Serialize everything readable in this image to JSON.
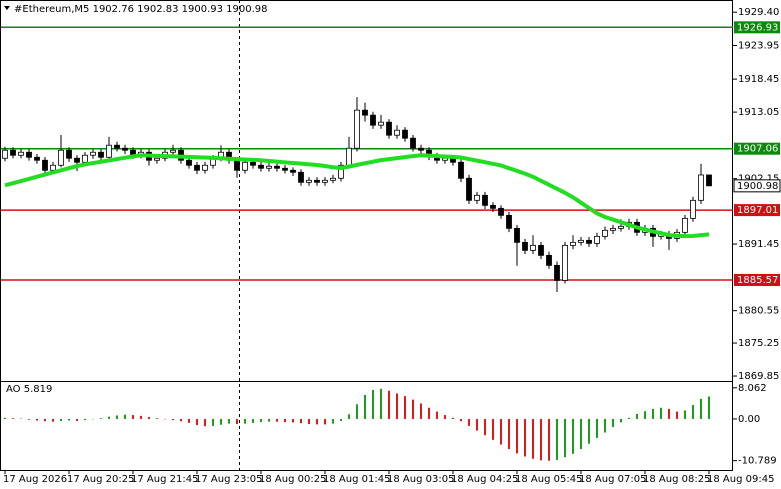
{
  "chart_data": [
    {
      "type": "candlestick",
      "title": "#Ethereum,M5  1902.76 1902.83 1900.93 1900.98",
      "categories": [
        "17 Aug 2026",
        null,
        null,
        null,
        null,
        null,
        null,
        null,
        "17 Aug 20:25",
        null,
        null,
        null,
        null,
        null,
        null,
        null,
        "17 Aug 21:45",
        null,
        null,
        null,
        null,
        null,
        null,
        null,
        "17 Aug 23:05",
        null,
        null,
        null,
        null,
        null,
        null,
        null,
        "18 Aug 00:25",
        null,
        null,
        null,
        null,
        null,
        null,
        null,
        "18 Aug 01:45",
        null,
        null,
        null,
        null,
        null,
        null,
        null,
        "18 Aug 03:05",
        null,
        null,
        null,
        null,
        null,
        null,
        null,
        "18 Aug 04:25",
        null,
        null,
        null,
        null,
        null,
        null,
        null,
        "18 Aug 05:45",
        null,
        null,
        null,
        null,
        null,
        null,
        null,
        "18 Aug 07:05",
        null,
        null,
        null,
        null,
        null,
        null,
        null,
        "18 Aug 08:25",
        null,
        null,
        null,
        null,
        null,
        null,
        null,
        "18 Aug 09:45"
      ],
      "open": [
        1905.5,
        1906.81,
        1905.99,
        1906.48,
        1905.66,
        1905.17,
        1903.53,
        1904.35,
        1906.81,
        1905.5,
        1904.84,
        1905.99,
        1906.48,
        1905.66,
        1907.63,
        1907.14,
        1906.81,
        1905.99,
        1906.48,
        1905.17,
        1905.5,
        1906.48,
        1906.81,
        1905.17,
        1904.35,
        1903.53,
        1904.35,
        1905.5,
        1906.48,
        1905.17,
        1903.53,
        1904.84,
        1904.35,
        1903.86,
        1904.19,
        1903.86,
        1903.53,
        1903.2,
        1901.56,
        1901.89,
        1901.56,
        1901.89,
        1902.22,
        1904.35,
        1907.14,
        1913.37,
        1912.55,
        1910.91,
        1911.4,
        1909.27,
        1910.09,
        1908.78,
        1907.14,
        1906.81,
        1905.83,
        1905.17,
        1905.5,
        1904.84,
        1902.22,
        1898.61,
        1899.43,
        1897.79,
        1897.3,
        1896.15,
        1894.02,
        1891.73,
        1890.42,
        1891.24,
        1889.6,
        1887.96,
        1885.5,
        1891.24,
        1891.73,
        1892.06,
        1891.56,
        1892.71,
        1893.7,
        1894.02,
        1894.35,
        1895.01,
        1893.37,
        1894.02,
        1892.71,
        1893.04,
        1892.38,
        1893.37,
        1895.66,
        1898.61,
        1902.76
      ],
      "high": [
        1907.4,
        1907.3,
        1907,
        1907,
        1906.2,
        1905.7,
        1904.9,
        1909.3,
        1907.3,
        1906,
        1906.5,
        1907,
        1907,
        1909,
        1908.2,
        1907.7,
        1907.3,
        1907,
        1907,
        1906,
        1907,
        1907.7,
        1907.3,
        1905.7,
        1904.9,
        1904.9,
        1906,
        1907.6,
        1907,
        1905.7,
        1905.4,
        1905.4,
        1904.9,
        1904.7,
        1904.7,
        1904.4,
        1904,
        1903.7,
        1902.4,
        1902.4,
        1902.4,
        1902.8,
        1904.9,
        1909,
        1915.5,
        1914.6,
        1913.1,
        1912.6,
        1911.9,
        1910.9,
        1910.6,
        1909.3,
        1907.7,
        1907.3,
        1906.4,
        1906,
        1906,
        1905.4,
        1902.8,
        1900,
        1900,
        1898.3,
        1897.8,
        1896.7,
        1894.6,
        1892.3,
        1892.9,
        1891.8,
        1890.2,
        1888.6,
        1891.8,
        1892.9,
        1892.6,
        1892.6,
        1893.3,
        1894.3,
        1894.6,
        1895.5,
        1895.6,
        1895.6,
        1894.6,
        1894.6,
        1893.6,
        1893.6,
        1893.9,
        1896.2,
        1899.2,
        1904.6,
        1902.83
      ],
      "low": [
        1905,
        1905.5,
        1905.5,
        1905.1,
        1904.6,
        1902.9,
        1903,
        1904,
        1904.9,
        1903.4,
        1904.3,
        1905.4,
        1905.1,
        1905.2,
        1906.6,
        1906.2,
        1905.4,
        1905.5,
        1904.3,
        1904.6,
        1905,
        1906,
        1904.6,
        1903.8,
        1902.9,
        1903,
        1903.8,
        1905,
        1904.6,
        1902.3,
        1903,
        1903.8,
        1903.3,
        1903.3,
        1903.3,
        1903,
        1902.6,
        1901,
        1901,
        1901,
        1901,
        1901.4,
        1901.7,
        1903.8,
        1906.6,
        1911.5,
        1910.3,
        1910.3,
        1908.7,
        1908.7,
        1908.2,
        1906.6,
        1906.2,
        1905.2,
        1904.6,
        1904.6,
        1904.3,
        1901.6,
        1898,
        1898,
        1897.2,
        1896.7,
        1895.6,
        1893.4,
        1887.9,
        1889.8,
        1889.8,
        1889,
        1887.4,
        1883.6,
        1885,
        1890.6,
        1891.2,
        1891,
        1891,
        1892.2,
        1893.1,
        1893.5,
        1893.8,
        1892.8,
        1892.8,
        1891,
        1892.2,
        1890.5,
        1891.8,
        1892.8,
        1895.1,
        1898,
        1900.93
      ],
      "close": [
        1906.81,
        1905.99,
        1906.48,
        1905.66,
        1905.17,
        1903.53,
        1904.35,
        1906.81,
        1905.5,
        1904.84,
        1905.99,
        1906.48,
        1905.66,
        1907.63,
        1907.14,
        1906.81,
        1905.99,
        1906.48,
        1905.17,
        1905.5,
        1906.48,
        1906.81,
        1905.17,
        1904.35,
        1903.53,
        1904.35,
        1905.5,
        1906.48,
        1905.17,
        1903.53,
        1904.84,
        1904.35,
        1903.86,
        1904.19,
        1903.86,
        1903.53,
        1903.2,
        1901.56,
        1901.89,
        1901.56,
        1901.89,
        1902.22,
        1904.35,
        1907.14,
        1913.37,
        1912.55,
        1910.91,
        1911.4,
        1909.27,
        1910.09,
        1908.78,
        1907.14,
        1906.81,
        1905.83,
        1905.17,
        1905.5,
        1904.84,
        1902.22,
        1898.61,
        1899.43,
        1897.79,
        1897.3,
        1896.15,
        1894.02,
        1891.73,
        1890.42,
        1891.24,
        1889.6,
        1887.96,
        1885.5,
        1891.24,
        1891.73,
        1892.06,
        1891.56,
        1892.71,
        1893.7,
        1894.02,
        1894.35,
        1895.01,
        1893.37,
        1894.02,
        1892.71,
        1893.04,
        1892.38,
        1893.37,
        1895.66,
        1898.61,
        1902.76,
        1900.98
      ],
      "up_color": "#ffffff",
      "down_color": "#000000",
      "ma": {
        "color": "#22dd22",
        "values": [
          1901.07,
          1901.42,
          1901.77,
          1902.12,
          1902.47,
          1902.82,
          1903.17,
          1903.52,
          1903.87,
          1904.22,
          1904.49,
          1904.71,
          1904.92,
          1905.14,
          1905.36,
          1905.58,
          1905.8,
          1905.98,
          1905.94,
          1905.89,
          1905.85,
          1905.8,
          1905.76,
          1905.72,
          1905.67,
          1905.62,
          1905.55,
          1905.49,
          1905.42,
          1905.36,
          1905.29,
          1905.23,
          1905.16,
          1905.05,
          1904.94,
          1904.83,
          1904.72,
          1904.61,
          1904.5,
          1904.39,
          1904.23,
          1904.03,
          1903.89,
          1904.15,
          1904.41,
          1904.68,
          1904.94,
          1905.19,
          1905.35,
          1905.52,
          1905.68,
          1905.84,
          1905.98,
          1905.92,
          1905.85,
          1905.78,
          1905.72,
          1905.63,
          1905.37,
          1905.11,
          1904.85,
          1904.59,
          1904.31,
          1903.87,
          1903.43,
          1902.98,
          1902.46,
          1901.81,
          1901.15,
          1900.5,
          1899.84,
          1899.1,
          1898.22,
          1897.35,
          1896.48,
          1895.88,
          1895.46,
          1895.03,
          1894.6,
          1894.18,
          1893.83,
          1893.52,
          1893.22,
          1892.92,
          1892.82,
          1892.75,
          1892.77,
          1892.91,
          1893.04
        ]
      },
      "levels": [
        {
          "value": 1926.93,
          "color": "#0b8a0b"
        },
        {
          "value": 1907.06,
          "color": "#0b8a0b"
        },
        {
          "value": 1897.01,
          "color": "#d01010"
        },
        {
          "value": 1885.57,
          "color": "#d01010"
        }
      ],
      "last_price": 1900.98,
      "ylim": [
        1869.2,
        1931.4
      ],
      "yticks": [
        {
          "value": 1929.4,
          "label": "1929.40"
        },
        1923.95,
        1918.45,
        1913.05,
        1902.15,
        1891.45,
        1880.55,
        1875.25,
        1869.85
      ]
    },
    {
      "type": "ao",
      "title": "AO 5.819",
      "values": [
        0.3,
        0.2,
        0.1,
        -0.2,
        -0.4,
        -0.6,
        -0.7,
        -0.5,
        -0.4,
        -0.5,
        -0.3,
        -0.1,
        0.2,
        0.6,
        0.9,
        1.1,
        1.0,
        0.8,
        0.5,
        0.2,
        -0.1,
        -0.3,
        -0.6,
        -1.0,
        -1.6,
        -1.9,
        -1.8,
        -1.5,
        -1.2,
        -1.3,
        -1.2,
        -1.0,
        -0.8,
        -0.7,
        -0.7,
        -0.8,
        -0.9,
        -1.1,
        -1.3,
        -1.4,
        -1.4,
        -1.2,
        -0.5,
        1.2,
        3.8,
        6.2,
        7.5,
        7.8,
        7.3,
        6.6,
        5.9,
        5.0,
        4.0,
        2.9,
        1.9,
        1.0,
        0.3,
        -0.6,
        -1.8,
        -3.0,
        -4.2,
        -5.4,
        -6.6,
        -7.8,
        -8.9,
        -9.7,
        -10.3,
        -10.7,
        -10.8,
        -10.6,
        -9.9,
        -9.0,
        -7.8,
        -6.4,
        -4.9,
        -3.5,
        -2.1,
        -0.9,
        0.3,
        1.3,
        2.0,
        2.6,
        2.9,
        2.6,
        1.9,
        2.2,
        3.6,
        5.2,
        5.819
      ],
      "up_color": "#18a018",
      "down_color": "#e01818",
      "ylim": [
        -13.2,
        9.3
      ],
      "yticks": [
        8.062,
        {
          "value": 0,
          "label": "0.00"
        },
        -10.789
      ]
    }
  ]
}
